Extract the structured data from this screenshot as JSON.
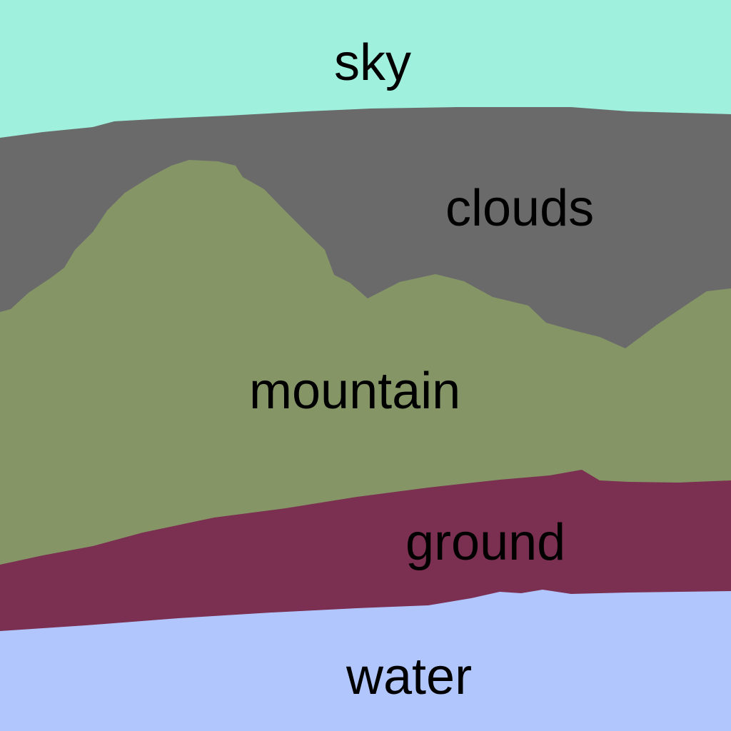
{
  "regions": [
    {
      "id": "sky",
      "label": "sky",
      "color": "#9ff0dd"
    },
    {
      "id": "clouds",
      "label": "clouds",
      "color": "#6a6a6a"
    },
    {
      "id": "mountain",
      "label": "mountain",
      "color": "#859566"
    },
    {
      "id": "ground",
      "label": "ground",
      "color": "#7b2f51"
    },
    {
      "id": "water",
      "label": "water",
      "color": "#b2c6fe"
    }
  ]
}
